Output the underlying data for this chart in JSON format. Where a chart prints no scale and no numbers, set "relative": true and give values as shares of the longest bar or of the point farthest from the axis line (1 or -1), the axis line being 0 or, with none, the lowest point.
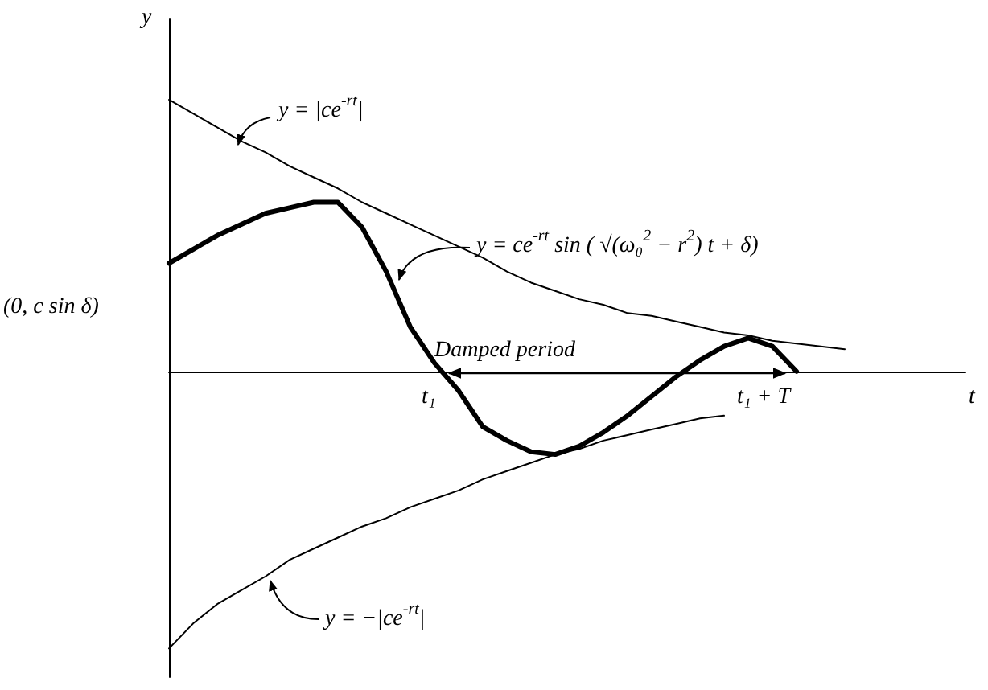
{
  "chart_data": {
    "type": "line",
    "relative": true,
    "marker": "none",
    "xlabel": "t",
    "ylabel": "y",
    "categories": [
      null,
      null,
      null,
      null,
      null,
      null,
      null,
      null,
      null,
      null,
      null,
      null,
      null,
      null,
      null,
      null,
      null,
      null,
      null,
      null,
      null,
      null,
      null,
      null,
      null,
      null,
      null,
      null,
      null,
      null,
      null,
      null,
      null,
      null
    ],
    "series": [
      {
        "color": "#000000",
        "values": [
          0.98,
          0.93,
          0.88,
          0.83,
          0.79,
          0.74,
          0.7,
          0.66,
          0.61,
          0.57,
          0.53,
          0.49,
          0.45,
          0.41,
          0.36,
          0.32,
          0.29,
          0.26,
          0.24,
          0.21,
          0.2,
          0.18,
          0.16,
          0.14,
          0.13,
          0.11,
          0.1,
          0.09,
          0.08,
          null,
          null,
          null,
          null,
          null
        ]
      },
      {
        "color": "#000000",
        "values": [
          -1,
          -0.91,
          -0.84,
          -0.79,
          -0.74,
          -0.68,
          -0.64,
          -0.6,
          -0.56,
          -0.53,
          -0.49,
          -0.46,
          -0.43,
          -0.39,
          -0.36,
          -0.33,
          -0.3,
          -0.28,
          -0.25,
          -0.23,
          -0.21,
          -0.19,
          -0.17,
          -0.16,
          null,
          null,
          null,
          null,
          null,
          null,
          null,
          null,
          null,
          null
        ]
      },
      {
        "color": "#000000",
        "values": [
          0.39,
          0.44,
          0.49,
          0.53,
          0.57,
          0.59,
          0.61,
          0.61,
          0.52,
          0.36,
          0.16,
          0.03,
          -0.07,
          -0.2,
          -0.25,
          -0.29,
          -0.3,
          -0.27,
          -0.22,
          -0.16,
          -0.09,
          -0.02,
          0.04,
          0.09,
          0.12,
          0.09,
          0,
          null,
          null,
          null,
          null,
          null,
          null,
          null
        ]
      }
    ],
    "annotations": [
      "(0, c sin δ)",
      "y = |ce$^{-rt}$|",
      "y = ce$^{-rt}$ sin ( √(ω₀$^{2}$ − r$^{2}$) t + δ)",
      "Damped period",
      "t₁",
      "t₁ + T",
      "y = −|ce$^{-rt}$|"
    ]
  }
}
